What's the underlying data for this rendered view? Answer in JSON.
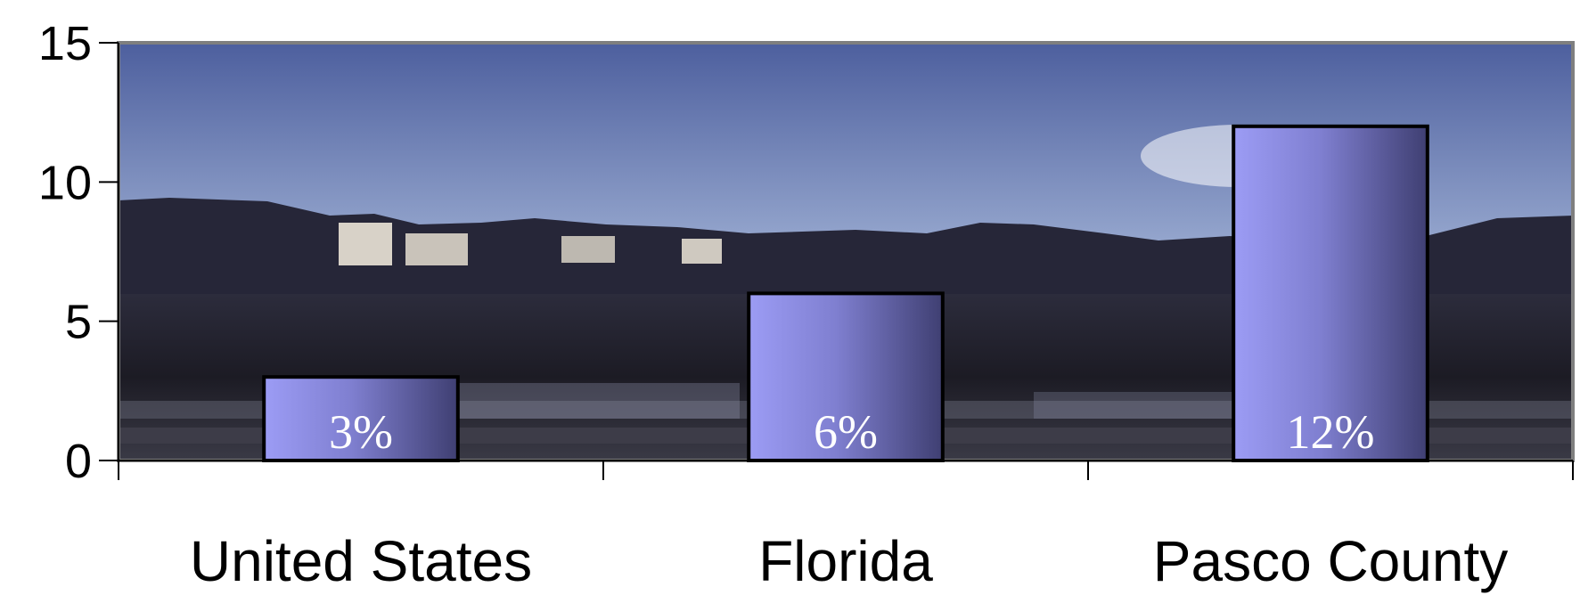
{
  "chart_data": {
    "type": "bar",
    "categories": [
      "United States",
      "Florida",
      "Pasco County"
    ],
    "values": [
      3,
      6,
      12
    ],
    "data_labels": [
      "3%",
      "6%",
      "12%"
    ],
    "ylim": [
      0,
      15
    ],
    "yticks": [
      0,
      5,
      10,
      15
    ],
    "ytick_labels": [
      "0",
      "5",
      "10",
      "15"
    ],
    "title": "",
    "xlabel": "",
    "ylabel": "",
    "grid": false,
    "legend": "none",
    "colors": {
      "bar_light": "#9c9cf5",
      "bar_dark": "#3f3f72",
      "bar_border": "#000000",
      "sky_top": "#4d5f9e",
      "sky_bottom": "#e2e8f4",
      "ground": "#24232f",
      "plot_border": "#7f7f7f"
    }
  }
}
